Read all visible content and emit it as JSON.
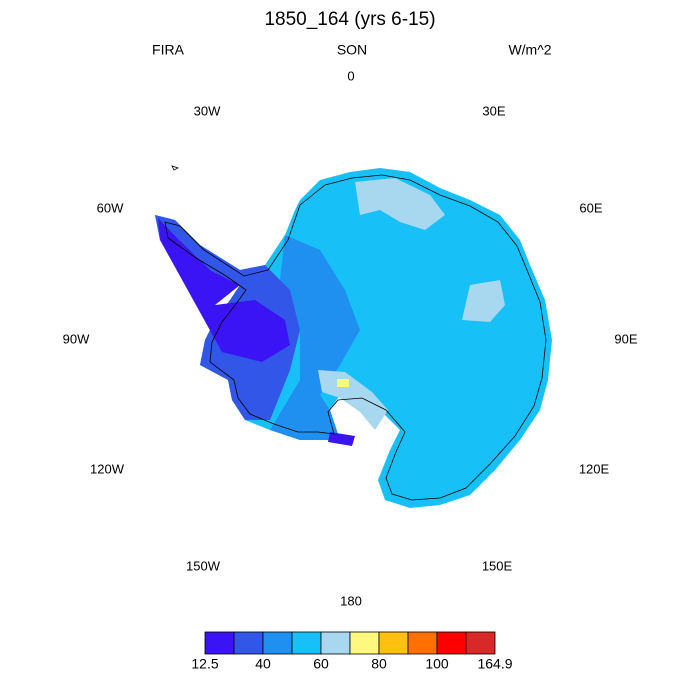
{
  "title": "1850_164 (yrs 6-15)",
  "left_string": "FIRA",
  "center_string": "SON",
  "right_string": "W/m^2",
  "lon_labels": [
    "0",
    "30E",
    "60E",
    "90E",
    "120E",
    "150E",
    "180",
    "150W",
    "120W",
    "90W",
    "60W",
    "30W"
  ],
  "colorbar": {
    "colors": [
      "#3a14f5",
      "#3256e8",
      "#2090f0",
      "#18c0f8",
      "#a8d8f0",
      "#fff880",
      "#ffc010",
      "#ff7000",
      "#ff0000",
      "#d82828"
    ],
    "ticks": [
      12.5,
      40,
      60,
      80,
      100,
      164.9
    ]
  }
}
